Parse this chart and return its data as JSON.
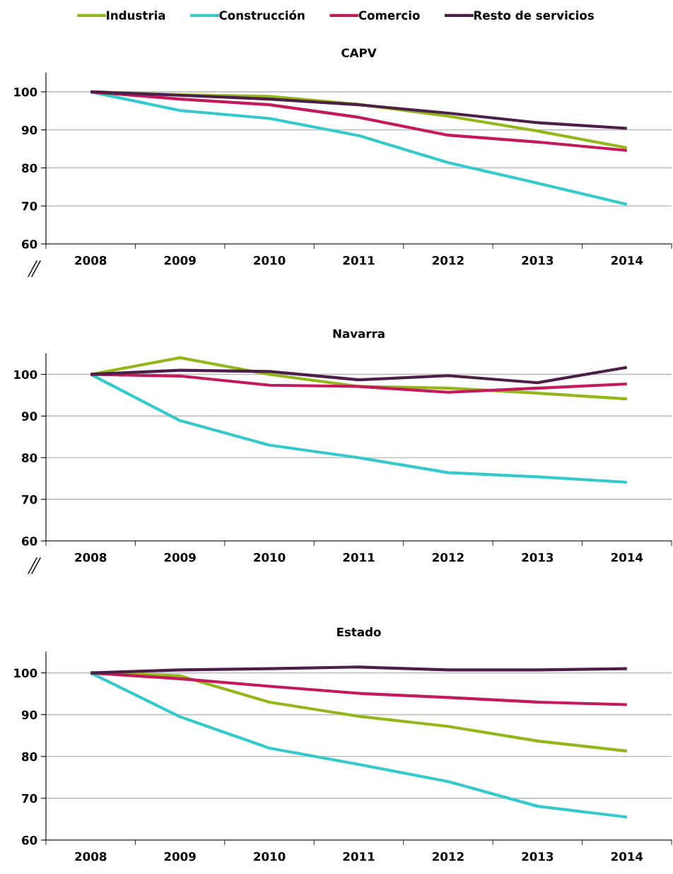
{
  "chart_data": [
    {
      "type": "line",
      "title": "CAPV",
      "categories": [
        "2008",
        "2009",
        "2010",
        "2011",
        "2012",
        "2013",
        "2014"
      ],
      "ylim": [
        60,
        105
      ],
      "yticks": [
        60,
        70,
        80,
        90,
        100
      ],
      "grid": "y",
      "legend": "top",
      "series": [
        {
          "name": "Industria",
          "color": "#95b61a",
          "values": [
            100,
            99.2,
            98.8,
            96.7,
            93.6,
            89.7,
            85.3
          ]
        },
        {
          "name": "Construcción",
          "color": "#36c9cb",
          "values": [
            100,
            95.1,
            93.0,
            88.5,
            81.4,
            76.0,
            70.4
          ]
        },
        {
          "name": "Comercio",
          "color": "#c21a5b",
          "values": [
            100,
            98.1,
            96.6,
            93.3,
            88.6,
            86.8,
            84.6
          ]
        },
        {
          "name": "Resto de servicios",
          "color": "#4b1f47",
          "values": [
            100,
            99.1,
            98.1,
            96.6,
            94.4,
            91.9,
            90.4
          ]
        }
      ]
    },
    {
      "type": "line",
      "title": "Navarra",
      "categories": [
        "2008",
        "2009",
        "2010",
        "2011",
        "2012",
        "2013",
        "2014"
      ],
      "ylim": [
        60,
        105
      ],
      "yticks": [
        60,
        70,
        80,
        90,
        100
      ],
      "grid": "y",
      "series": [
        {
          "color": "#95b61a",
          "values": [
            100,
            104.0,
            100.0,
            97.1,
            96.7,
            95.5,
            94.1
          ]
        },
        {
          "color": "#36c9cb",
          "values": [
            100,
            88.9,
            83.0,
            80.0,
            76.4,
            75.4,
            74.1
          ]
        },
        {
          "color": "#c21a5b",
          "values": [
            100,
            99.6,
            97.4,
            97.1,
            95.7,
            96.7,
            97.7
          ]
        },
        {
          "color": "#4b1f47",
          "values": [
            100,
            101.0,
            100.7,
            98.7,
            99.7,
            98.0,
            101.7
          ]
        }
      ]
    },
    {
      "type": "line",
      "title": "Estado",
      "categories": [
        "2008",
        "2009",
        "2010",
        "2011",
        "2012",
        "2013",
        "2014"
      ],
      "ylim": [
        60,
        105
      ],
      "yticks": [
        60,
        70,
        80,
        90,
        100
      ],
      "grid": "y",
      "series": [
        {
          "color": "#95b61a",
          "values": [
            100,
            99.3,
            93.0,
            89.6,
            87.2,
            83.7,
            81.3
          ]
        },
        {
          "color": "#36c9cb",
          "values": [
            100,
            89.5,
            82.0,
            78.1,
            74.0,
            68.1,
            65.5
          ]
        },
        {
          "color": "#c21a5b",
          "values": [
            100,
            98.6,
            96.8,
            95.1,
            94.1,
            93.0,
            92.4
          ]
        },
        {
          "color": "#4b1f47",
          "values": [
            100,
            100.7,
            101.0,
            101.4,
            100.7,
            100.7,
            101.0
          ]
        }
      ]
    }
  ]
}
